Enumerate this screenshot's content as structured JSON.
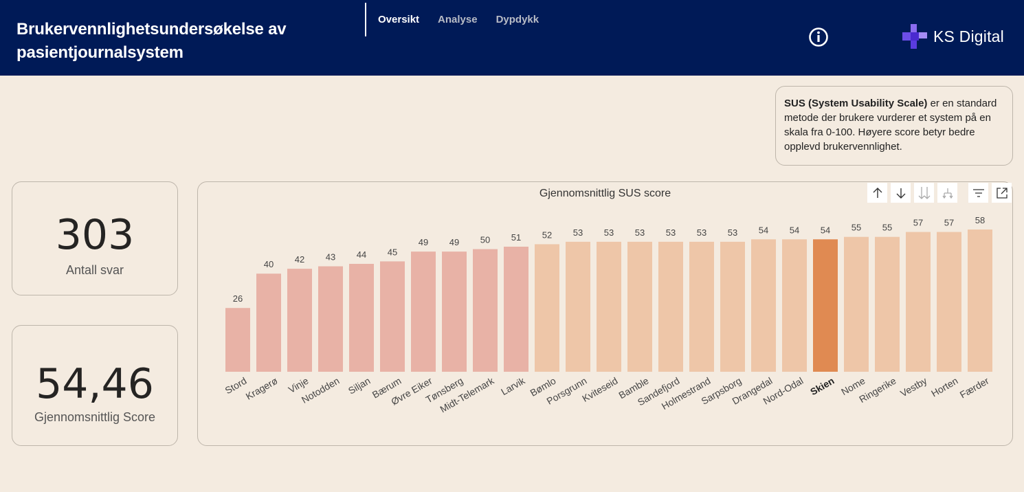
{
  "header": {
    "title": "Brukervennlighetsundersøkelse av pasientjournalsystem",
    "tabs": [
      {
        "label": "Oversikt",
        "active": true
      },
      {
        "label": "Analyse",
        "active": false
      },
      {
        "label": "Dypdykk",
        "active": false
      }
    ],
    "info_icon": "info-icon",
    "logo_text": "KS Digital"
  },
  "sus_info": {
    "bold": "SUS (System Usability Scale)",
    "rest": " er en standard metode der brukere vurderer et system på en skala fra 0-100. Høyere score betyr bedre opplevd brukervennlighet."
  },
  "kpis": {
    "responses": {
      "value": "303",
      "label": "Antall svar"
    },
    "avg_score": {
      "value": "54,46",
      "label": "Gjennomsnittlig Score"
    }
  },
  "colors": {
    "header_bg": "#001a57",
    "bar_low": "#e8b2a6",
    "bar_high": "#eec6a8",
    "bar_highlight": "#e08a52"
  },
  "toolbar": [
    "arrow-up-icon",
    "arrow-down-icon",
    "double-arrow-down-icon",
    "expand-hierarchy-icon",
    "filter-icon",
    "focus-mode-icon"
  ],
  "chart_data": {
    "type": "bar",
    "title": "Gjennomsnittlig SUS score",
    "categories": [
      "Stord",
      "Kragerø",
      "Vinje",
      "Notodden",
      "Siljan",
      "Bærum",
      "Øvre Eiker",
      "Tønsberg",
      "Midt-Telemark",
      "Larvik",
      "Bømlo",
      "Porsgrunn",
      "Kviteseid",
      "Bamble",
      "Sandefjord",
      "Holmestrand",
      "Sarpsborg",
      "Drangedal",
      "Nord-Odal",
      "Skien",
      "Nome",
      "Ringerike",
      "Vestby",
      "Horten",
      "Færder"
    ],
    "values": [
      26,
      40,
      42,
      43,
      44,
      45,
      49,
      49,
      50,
      51,
      52,
      53,
      53,
      53,
      53,
      53,
      53,
      54,
      54,
      54,
      55,
      55,
      57,
      57,
      58
    ],
    "highlight": "Skien",
    "color_threshold": 52,
    "ylim": [
      0,
      58
    ],
    "xlabel": "",
    "ylabel": "",
    "data_labels": true,
    "grid": false
  }
}
